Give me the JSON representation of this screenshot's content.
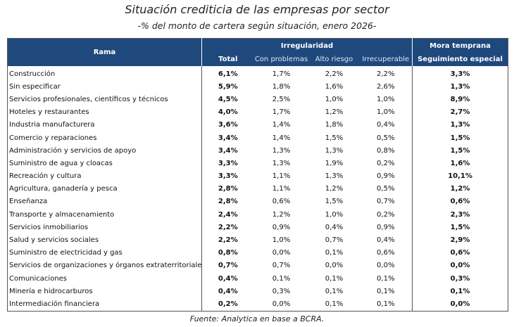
{
  "title": "Situación crediticia de las empresas por sector",
  "subtitle": "-% del monto de cartera según situación, enero 2026-",
  "footer": "Fuente: Analytica en base a BCRA.",
  "colors": {
    "header_bg": "#1f497d",
    "header_text": "#ffffff"
  },
  "chart_data": {
    "type": "table",
    "header": {
      "rama": "Rama",
      "irregularidad": "Irregularidad",
      "mora_temprana": "Mora temprana",
      "columns": [
        "Total",
        "Con problemas",
        "Alto riesgo",
        "Irrecuperable",
        "Seguimiento especial"
      ]
    },
    "rows": [
      {
        "rama": "Construcción",
        "values": [
          "6,1%",
          "1,7%",
          "2,2%",
          "2,2%",
          "3,3%"
        ]
      },
      {
        "rama": "Sin especificar",
        "values": [
          "5,9%",
          "1,8%",
          "1,6%",
          "2,6%",
          "1,3%"
        ]
      },
      {
        "rama": "Servicios profesionales, científicos y técnicos",
        "values": [
          "4,5%",
          "2,5%",
          "1,0%",
          "1,0%",
          "8,9%"
        ]
      },
      {
        "rama": "Hoteles y restaurantes",
        "values": [
          "4,0%",
          "1,7%",
          "1,2%",
          "1,0%",
          "2,7%"
        ]
      },
      {
        "rama": "Industria manufacturera",
        "values": [
          "3,6%",
          "1,4%",
          "1,8%",
          "0,4%",
          "1,3%"
        ]
      },
      {
        "rama": "Comercio y reparaciones",
        "values": [
          "3,4%",
          "1,4%",
          "1,5%",
          "0,5%",
          "1,5%"
        ]
      },
      {
        "rama": "Administración y servicios de apoyo",
        "values": [
          "3,4%",
          "1,3%",
          "1,3%",
          "0,8%",
          "1,5%"
        ]
      },
      {
        "rama": "Suministro de agua y cloacas",
        "values": [
          "3,3%",
          "1,3%",
          "1,9%",
          "0,2%",
          "1,6%"
        ]
      },
      {
        "rama": "Recreación y cultura",
        "values": [
          "3,3%",
          "1,1%",
          "1,3%",
          "0,9%",
          "10,1%"
        ]
      },
      {
        "rama": "Agricultura, ganadería y pesca",
        "values": [
          "2,8%",
          "1,1%",
          "1,2%",
          "0,5%",
          "1,2%"
        ]
      },
      {
        "rama": "Enseñanza",
        "values": [
          "2,8%",
          "0,6%",
          "1,5%",
          "0,7%",
          "0,6%"
        ]
      },
      {
        "rama": "Transporte y almacenamiento",
        "values": [
          "2,4%",
          "1,2%",
          "1,0%",
          "0,2%",
          "2,3%"
        ]
      },
      {
        "rama": "Servicios inmobiliarios",
        "values": [
          "2,2%",
          "0,9%",
          "0,4%",
          "0,9%",
          "1,5%"
        ]
      },
      {
        "rama": "Salud y servicios sociales",
        "values": [
          "2,2%",
          "1,0%",
          "0,7%",
          "0,4%",
          "2,9%"
        ]
      },
      {
        "rama": "Suministro de electricidad y gas",
        "values": [
          "0,8%",
          "0,0%",
          "0,1%",
          "0,6%",
          "0,6%"
        ]
      },
      {
        "rama": "Servicios de organizaciones y órganos extraterritoriales",
        "values": [
          "0,7%",
          "0,7%",
          "0,0%",
          "0,0%",
          "0,0%"
        ]
      },
      {
        "rama": "Comunicaciones",
        "values": [
          "0,4%",
          "0,1%",
          "0,1%",
          "0,1%",
          "0,3%"
        ]
      },
      {
        "rama": "Minería e hidrocarburos",
        "values": [
          "0,4%",
          "0,3%",
          "0,1%",
          "0,1%",
          "0,1%"
        ]
      },
      {
        "rama": "Intermediación financiera",
        "values": [
          "0,2%",
          "0,0%",
          "0,1%",
          "0,1%",
          "0,0%"
        ]
      }
    ]
  }
}
